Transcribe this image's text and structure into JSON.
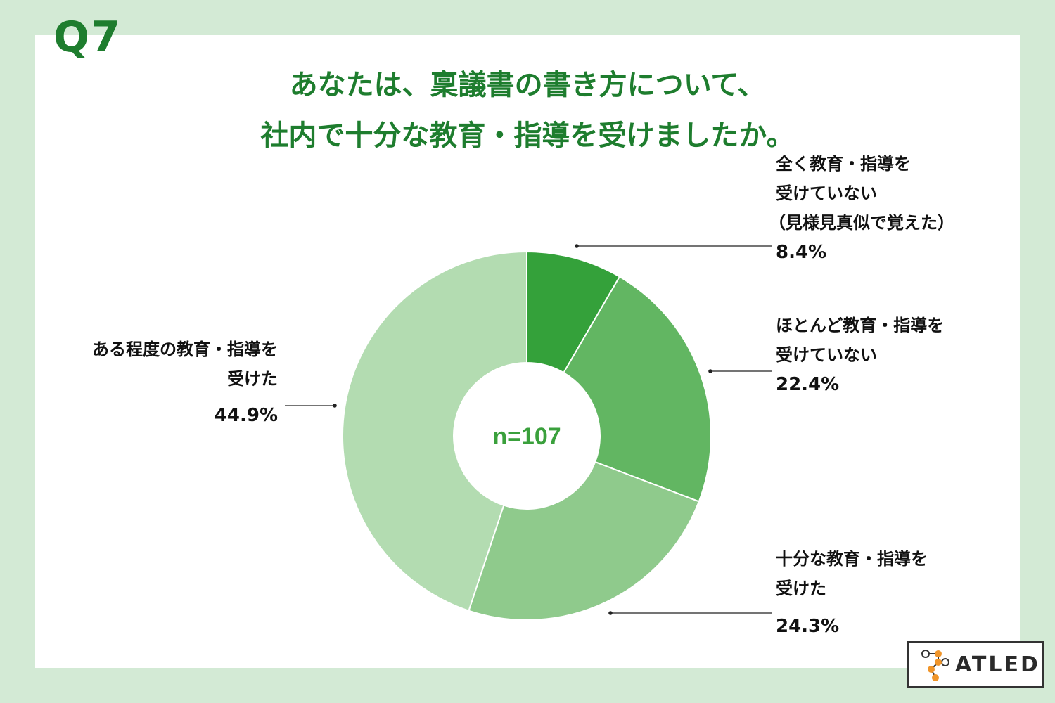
{
  "question_label": "Q7",
  "title_lines": [
    "あなたは、稟議書の書き方について、",
    "社内で十分な教育・指導を受けましたか。"
  ],
  "center_label": "n=107",
  "logo_text": "ATLED",
  "colors": {
    "background": "#d3ead5",
    "title": "#1e7d2e",
    "center_text": "#3aa03c"
  },
  "chart_data": {
    "type": "pie",
    "donut": true,
    "start": "12 o'clock, clockwise",
    "slices": [
      {
        "label_lines": [
          "全く教育・指導を",
          "受けていない",
          "（見様見真似で覚えた）"
        ],
        "value": 8.4,
        "display": "8.4%",
        "color": "#34a13a"
      },
      {
        "label_lines": [
          "ほとんど教育・指導を",
          "受けていない"
        ],
        "value": 22.4,
        "display": "22.4%",
        "color": "#62b662"
      },
      {
        "label_lines": [
          "十分な教育・指導を",
          "受けた"
        ],
        "value": 24.3,
        "display": "24.3%",
        "color": "#8fca8c"
      },
      {
        "label_lines": [
          "ある程度の教育・指導を",
          "受けた"
        ],
        "value": 44.9,
        "display": "44.9%",
        "color": "#b3dcb1"
      }
    ]
  }
}
